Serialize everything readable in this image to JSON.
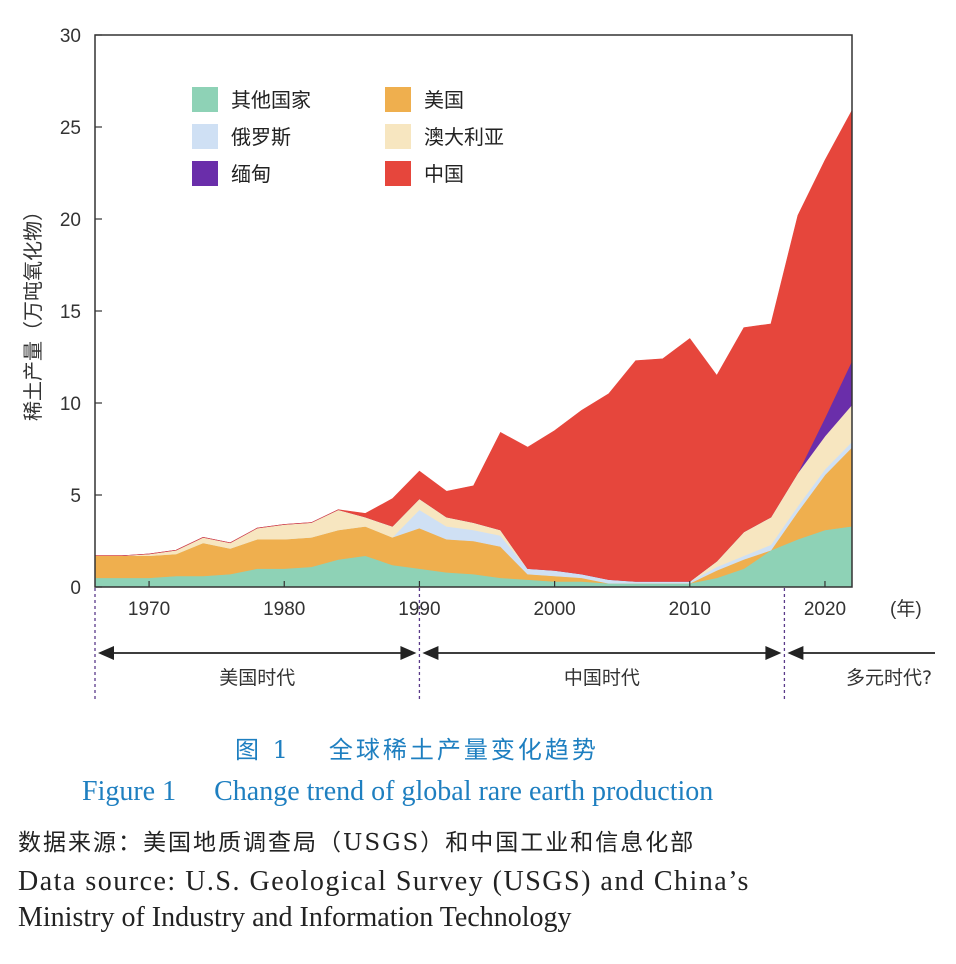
{
  "chart_data": {
    "type": "area",
    "stacked": true,
    "ylabel": "稀土产量（万吨氧化物）",
    "xunit": "(年)",
    "ylim": [
      0,
      30
    ],
    "yticks": [
      "0",
      "5",
      "10",
      "15",
      "20",
      "25",
      "30"
    ],
    "xticks": [
      "1970",
      "1980",
      "1990",
      "2000",
      "2010",
      "2020"
    ],
    "grid": false,
    "legend_position": "top-left",
    "x": [
      1966,
      1968,
      1970,
      1972,
      1974,
      1976,
      1978,
      1980,
      1982,
      1984,
      1986,
      1988,
      1990,
      1992,
      1994,
      1996,
      1998,
      2000,
      2002,
      2004,
      2006,
      2008,
      2010,
      2012,
      2014,
      2016,
      2018,
      2020,
      2022
    ],
    "series": [
      {
        "name": "其他国家",
        "color": "#8ed2b6",
        "values": [
          0.5,
          0.5,
          0.5,
          0.6,
          0.6,
          0.7,
          1.0,
          1.0,
          1.1,
          1.5,
          1.7,
          1.2,
          1.0,
          0.8,
          0.7,
          0.5,
          0.4,
          0.3,
          0.3,
          0.2,
          0.2,
          0.2,
          0.2,
          0.5,
          1.0,
          2.0,
          2.6,
          3.1,
          3.3
        ]
      },
      {
        "name": "美国",
        "color": "#efaf4e",
        "values": [
          1.2,
          1.2,
          1.2,
          1.2,
          1.8,
          1.4,
          1.6,
          1.6,
          1.6,
          1.6,
          1.6,
          1.5,
          2.2,
          1.8,
          1.8,
          1.7,
          0.3,
          0.3,
          0.2,
          0.0,
          0.0,
          0.0,
          0.0,
          0.4,
          0.5,
          0.0,
          1.5,
          3.0,
          4.3
        ]
      },
      {
        "name": "俄罗斯",
        "color": "#cfe0f4",
        "values": [
          0.0,
          0.0,
          0.0,
          0.0,
          0.0,
          0.0,
          0.0,
          0.0,
          0.0,
          0.0,
          0.0,
          0.0,
          1.0,
          0.7,
          0.6,
          0.6,
          0.3,
          0.3,
          0.2,
          0.2,
          0.1,
          0.1,
          0.1,
          0.2,
          0.2,
          0.3,
          0.3,
          0.3,
          0.3
        ]
      },
      {
        "name": "澳大利亚",
        "color": "#f7e6c0",
        "values": [
          0.0,
          0.0,
          0.1,
          0.2,
          0.3,
          0.3,
          0.6,
          0.8,
          0.8,
          1.1,
          0.5,
          0.6,
          0.6,
          0.5,
          0.4,
          0.3,
          0.0,
          0.0,
          0.0,
          0.0,
          0.0,
          0.0,
          0.0,
          0.3,
          1.3,
          1.5,
          1.8,
          1.8,
          2.0
        ]
      },
      {
        "name": "缅甸",
        "color": "#6a2eaa",
        "values": [
          0,
          0,
          0,
          0,
          0,
          0,
          0,
          0,
          0,
          0,
          0,
          0,
          0,
          0,
          0,
          0,
          0,
          0,
          0,
          0,
          0,
          0,
          0,
          0,
          0,
          0,
          0.0,
          1.0,
          2.4
        ]
      },
      {
        "name": "中国",
        "color": "#e6463c",
        "values": [
          0,
          0,
          0,
          0,
          0,
          0,
          0,
          0,
          0,
          0,
          0.2,
          1.5,
          1.5,
          1.4,
          2.0,
          5.3,
          6.6,
          7.6,
          8.9,
          10.1,
          12.0,
          12.1,
          13.2,
          10.1,
          11.1,
          10.5,
          14.0,
          14.0,
          13.6
        ]
      }
    ],
    "eras": [
      {
        "label": "美国时代",
        "from": 1966,
        "to": 1990
      },
      {
        "label": "中国时代",
        "from": 1990,
        "to": 2017
      },
      {
        "label": "多元时代?",
        "from": 2017,
        "to": 2022
      }
    ]
  },
  "caption": {
    "cn_fig": "图 1",
    "cn_title": "全球稀土产量变化趋势",
    "en_fig": "Figure 1",
    "en_title": "Change trend of global rare earth production",
    "source_cn": "数据来源：美国地质调查局（USGS）和中国工业和信息化部",
    "source_en_line1": "Data source: U.S. Geological Survey (USGS) and China’s",
    "source_en_line2": "Ministry of Industry and Information Technology"
  }
}
